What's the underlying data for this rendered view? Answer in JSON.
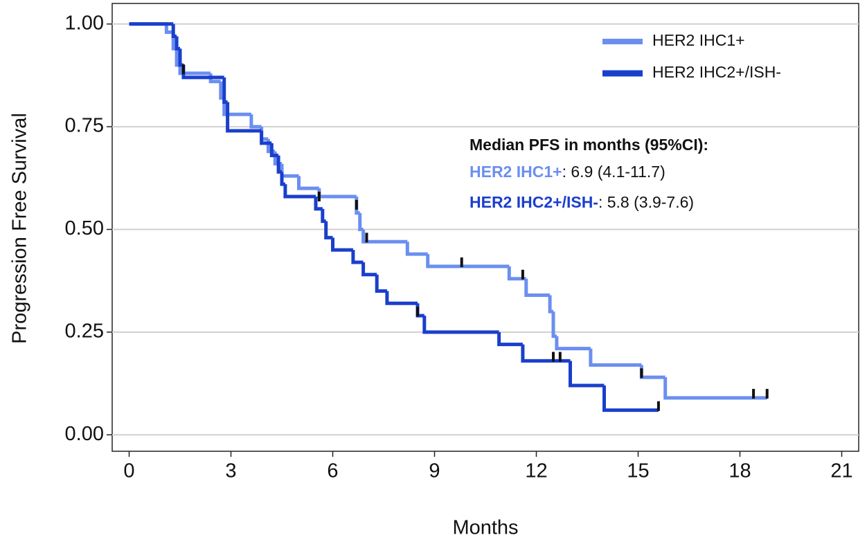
{
  "chart_data": {
    "type": "km",
    "xlabel": "Months",
    "ylabel": "Progression Free Survival",
    "xlim": [
      -0.5,
      21.5
    ],
    "ylim": [
      -0.04,
      1.05
    ],
    "xticks": [
      0,
      3,
      6,
      9,
      12,
      15,
      18,
      21
    ],
    "yticks": [
      {
        "value": 0,
        "label": "0.00"
      },
      {
        "value": 0.25,
        "label": "0.25"
      },
      {
        "value": 0.5,
        "label": "0.50"
      },
      {
        "value": 0.75,
        "label": "0.75"
      },
      {
        "value": 1,
        "label": "1.00"
      }
    ],
    "grid": true,
    "legend": "upper right",
    "series": [
      {
        "name": "HER2 IHC1+",
        "color": "#6b8ff0",
        "x": [
          0,
          1.1,
          1.3,
          1.4,
          1.5,
          2.4,
          2.7,
          2.8,
          3.6,
          3.9,
          4.1,
          4.3,
          4.5,
          5.0,
          5.6,
          6.7,
          6.8,
          6.9,
          8.2,
          8.8,
          11.2,
          11.7,
          12.4,
          12.5,
          12.6,
          13.6,
          15.1,
          15.8,
          18.8
        ],
        "values": [
          1.0,
          0.98,
          0.94,
          0.9,
          0.88,
          0.86,
          0.82,
          0.78,
          0.75,
          0.72,
          0.69,
          0.66,
          0.63,
          0.6,
          0.58,
          0.54,
          0.5,
          0.47,
          0.44,
          0.41,
          0.38,
          0.34,
          0.3,
          0.24,
          0.21,
          0.17,
          0.14,
          0.09,
          0.09
        ],
        "censor_x": [
          5.6,
          6.7,
          7.0,
          9.8,
          11.6,
          15.1,
          18.4,
          18.8
        ],
        "censor_y": [
          0.58,
          0.56,
          0.48,
          0.42,
          0.39,
          0.15,
          0.1,
          0.1
        ]
      },
      {
        "name": "HER2 IHC2+/ISH-",
        "color": "#1a3fcc",
        "x": [
          0,
          1.3,
          1.4,
          1.5,
          1.6,
          2.8,
          2.9,
          3.9,
          4.2,
          4.4,
          4.5,
          4.6,
          5.5,
          5.7,
          5.8,
          6.0,
          6.6,
          6.9,
          7.3,
          7.6,
          8.5,
          8.7,
          10.9,
          11.6,
          13.0,
          14.0,
          15.6
        ],
        "values": [
          1.0,
          0.97,
          0.94,
          0.9,
          0.87,
          0.81,
          0.74,
          0.71,
          0.68,
          0.64,
          0.61,
          0.58,
          0.55,
          0.52,
          0.48,
          0.45,
          0.42,
          0.39,
          0.35,
          0.32,
          0.29,
          0.25,
          0.22,
          0.18,
          0.12,
          0.06,
          0.06
        ],
        "censor_x": [
          1.6,
          8.5,
          12.5,
          12.7,
          15.6
        ],
        "censor_y": [
          0.89,
          0.3,
          0.19,
          0.19,
          0.07
        ]
      }
    ],
    "annotation": {
      "heading": "Median PFS in months (95%CI):",
      "lines": [
        {
          "name": "HER2 IHC1+",
          "text": ": 6.9 (4.1-11.7)"
        },
        {
          "name": "HER2 IHC2+/ISH-",
          "text": ": 5.8 (3.9-7.6)"
        }
      ]
    }
  }
}
